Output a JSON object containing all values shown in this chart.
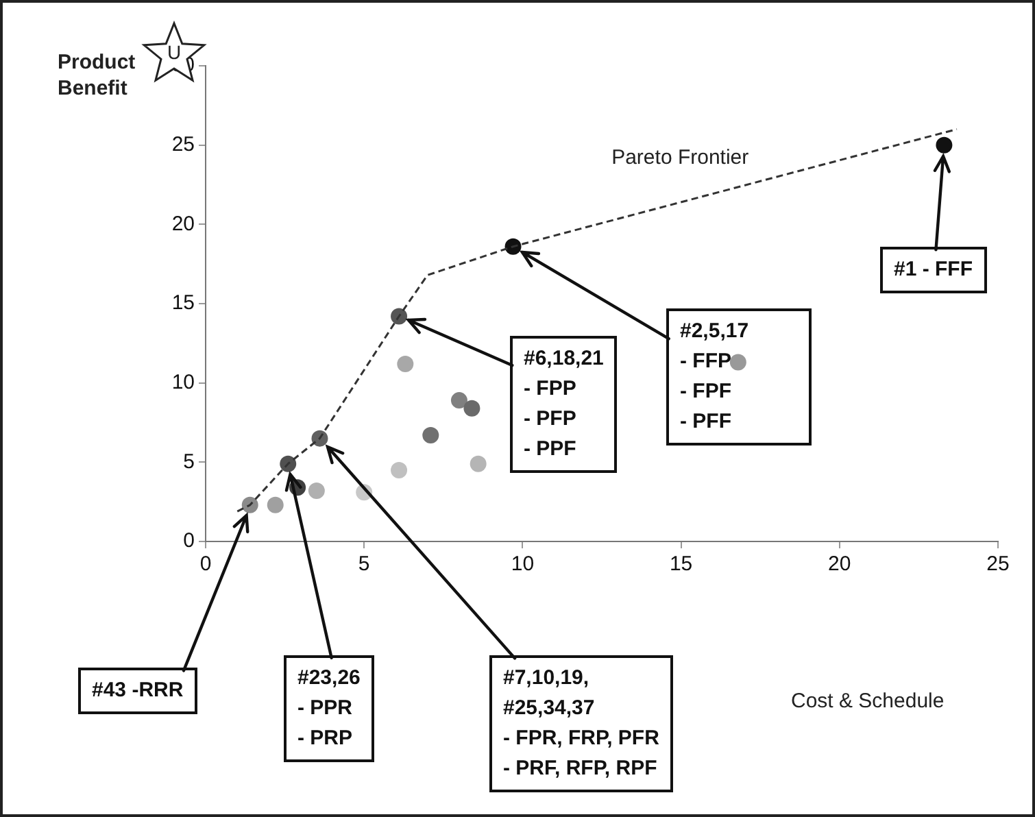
{
  "chart_data": {
    "type": "scatter",
    "ylabel": "Product Benefit",
    "xlim": [
      0,
      25
    ],
    "ylim": [
      0,
      30
    ],
    "xticks": [
      0,
      5,
      10,
      15,
      20,
      25
    ],
    "yticks": [
      0,
      5,
      10,
      15,
      20,
      25,
      30
    ],
    "grid": false,
    "legend": false,
    "series": [
      {
        "name": "Pareto Frontier",
        "type": "line",
        "color": "#333333",
        "line_style": "dashed",
        "marker": "none",
        "x": [
          1.0,
          1.4,
          2.6,
          3.6,
          6.1,
          7.0,
          9.7,
          23.7
        ],
        "values": [
          1.9,
          2.3,
          4.9,
          6.5,
          14.2,
          16.8,
          18.6,
          26
        ]
      },
      {
        "marker": "circle",
        "color": "#888888",
        "colors": [
          "#8a8a8a",
          "#a0a0a0",
          "#505050",
          "#404040",
          "#b0b0b0",
          "#606060",
          "#c8c8c8",
          "#c0c0c0",
          "#a8a8a8",
          "#555555",
          "#707070",
          "#808080",
          "#6a6a6a",
          "#b5b5b5",
          "#111111",
          "#999999",
          "#111111"
        ],
        "x": [
          1.4,
          2.2,
          2.6,
          2.9,
          3.5,
          3.6,
          5.0,
          6.1,
          6.3,
          6.1,
          7.1,
          8.0,
          8.4,
          8.6,
          9.7,
          16.8,
          23.3
        ],
        "values": [
          2.3,
          2.3,
          4.9,
          3.4,
          3.2,
          6.5,
          3.1,
          4.5,
          11.2,
          14.2,
          6.7,
          8.9,
          8.4,
          4.9,
          18.6,
          11.3,
          25
        ]
      }
    ],
    "annotations": [
      {
        "text": "#1 - FFF",
        "x": 23.3,
        "y": 25
      },
      {
        "text": "#2,5,17\n- FFP\n- FPF\n- PFF",
        "x": 9.7,
        "y": 18.6
      },
      {
        "text": "#6,18,21\n- FPP\n- PFP\n- PPF",
        "x": 6.1,
        "y": 14.2
      },
      {
        "text": "#7,10,19,\n#25,34,37\n- FPR, FRP, PFR\n- PRF, RFP, RPF",
        "x": 3.6,
        "y": 6.5
      },
      {
        "text": "#23,26\n- PPR\n- PRP",
        "x": 2.6,
        "y": 4.9
      },
      {
        "text": "#43 -RRR",
        "x": 1.4,
        "y": 2.3
      },
      "U",
      "Cost & Schedule"
    ]
  }
}
